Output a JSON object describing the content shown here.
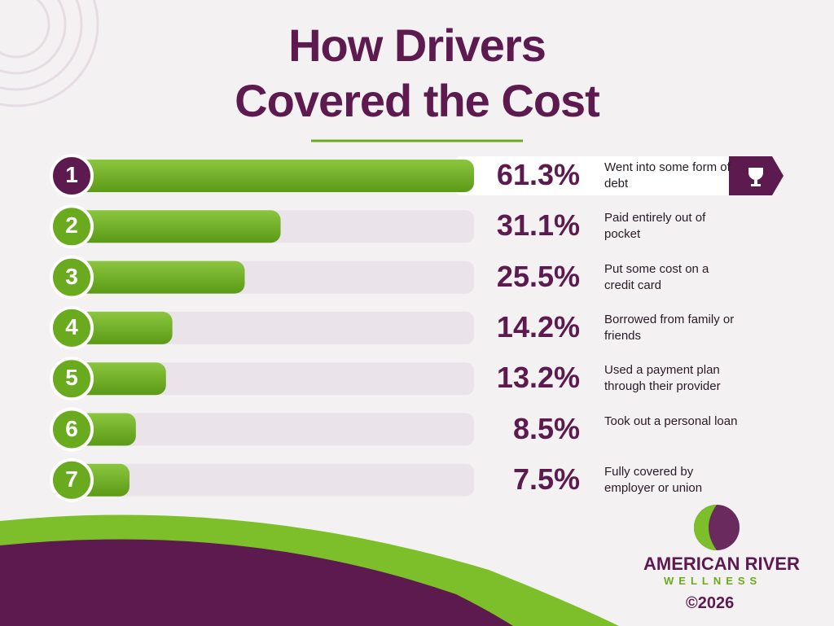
{
  "chart_data": {
    "type": "bar",
    "orientation": "horizontal",
    "title": "How Drivers Covered the Cost",
    "ranks": [
      1,
      2,
      3,
      4,
      5,
      6,
      7
    ],
    "categories": [
      "Went into some form of debt",
      "Paid entirely out of pocket",
      "Put some cost on a credit card",
      "Borrowed from family or friends",
      "Used a payment plan through their provider",
      "Took out a personal loan",
      "Fully covered by employer or union"
    ],
    "values": [
      61.3,
      31.1,
      25.5,
      14.2,
      13.2,
      8.5,
      7.5
    ],
    "value_labels": [
      "61.3%",
      "31.1%",
      "25.5%",
      "14.2%",
      "13.2%",
      "8.5%",
      "7.5%"
    ],
    "color": "#6aaa1e",
    "highlight_color": "#5c1a4f"
  },
  "brand": {
    "name": "AMERICAN RIVER",
    "tagline": "WELLNESS",
    "copyright": "©2026"
  }
}
